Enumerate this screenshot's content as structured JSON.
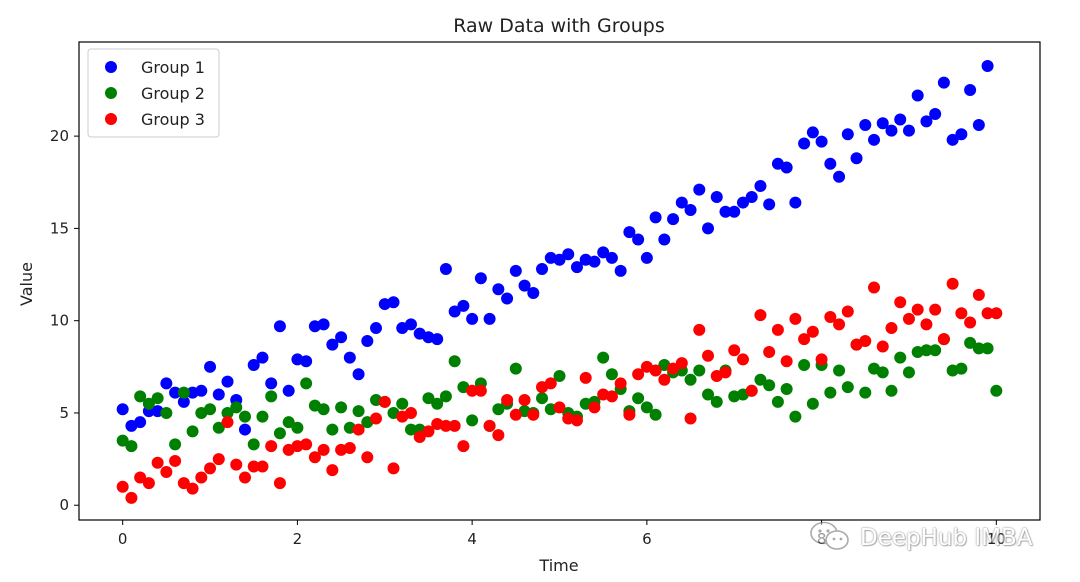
{
  "chart_data": {
    "type": "scatter",
    "title": "Raw Data with Groups",
    "xlabel": "Time",
    "ylabel": "Value",
    "xlim": [
      -0.5,
      10.5
    ],
    "ylim": [
      -0.8,
      25.1
    ],
    "xticks": [
      0,
      2,
      4,
      6,
      8,
      10
    ],
    "yticks": [
      0,
      5,
      10,
      15,
      20
    ],
    "grid": false,
    "legend": "top-left",
    "x": [
      0.0,
      0.1,
      0.2,
      0.3,
      0.4,
      0.5,
      0.6,
      0.7,
      0.8,
      0.9,
      1.0,
      1.1,
      1.2,
      1.3,
      1.4,
      1.5,
      1.6,
      1.7,
      1.8,
      1.9,
      2.0,
      2.1,
      2.2,
      2.3,
      2.4,
      2.5,
      2.6,
      2.7,
      2.8,
      2.9,
      3.0,
      3.1,
      3.2,
      3.3,
      3.4,
      3.5,
      3.6,
      3.7,
      3.8,
      3.9,
      4.0,
      4.1,
      4.2,
      4.3,
      4.4,
      4.5,
      4.6,
      4.7,
      4.8,
      4.9,
      5.0,
      5.1,
      5.2,
      5.3,
      5.4,
      5.5,
      5.6,
      5.7,
      5.8,
      5.9,
      6.0,
      6.1,
      6.2,
      6.3,
      6.4,
      6.5,
      6.6,
      6.7,
      6.8,
      6.9,
      7.0,
      7.1,
      7.2,
      7.3,
      7.4,
      7.5,
      7.6,
      7.7,
      7.8,
      7.9,
      8.0,
      8.1,
      8.2,
      8.3,
      8.4,
      8.5,
      8.6,
      8.7,
      8.8,
      8.9,
      9.0,
      9.1,
      9.2,
      9.3,
      9.4,
      9.5,
      9.6,
      9.7,
      9.8,
      9.9,
      10.0
    ],
    "series": [
      {
        "name": "Group 1",
        "color": "#0000ff",
        "values": [
          5.2,
          4.3,
          4.5,
          5.1,
          5.1,
          6.6,
          6.1,
          5.6,
          6.1,
          6.2,
          7.5,
          6.0,
          6.7,
          5.7,
          4.1,
          7.6,
          8.0,
          6.6,
          9.7,
          6.2,
          7.9,
          7.8,
          9.7,
          9.8,
          8.7,
          9.1,
          8.0,
          7.1,
          8.9,
          9.6,
          10.9,
          11.0,
          9.6,
          9.8,
          9.3,
          9.1,
          9.0,
          12.8,
          10.5,
          10.8,
          10.1,
          12.3,
          10.1,
          11.7,
          11.2,
          12.7,
          11.9,
          11.5,
          12.8,
          13.4,
          13.3,
          13.6,
          12.9,
          13.3,
          13.2,
          13.7,
          13.4,
          12.7,
          14.8,
          14.4,
          13.4,
          15.6,
          14.4,
          15.5,
          16.4,
          16.0,
          17.1,
          15.0,
          16.7,
          15.9,
          15.9,
          16.4,
          16.7,
          17.3,
          16.3,
          18.5,
          18.3,
          16.4,
          19.6,
          20.2,
          19.7,
          18.5,
          17.8,
          20.1,
          18.8,
          20.6,
          19.8,
          20.7,
          20.3,
          20.9,
          20.3,
          22.2,
          20.8,
          21.2,
          22.9,
          19.8,
          20.1,
          22.5,
          20.6,
          23.8
        ]
      },
      {
        "name": "Group 2",
        "color": "#008000",
        "values": [
          3.5,
          3.2,
          5.9,
          5.5,
          5.8,
          5.0,
          3.3,
          6.1,
          4.0,
          5.0,
          5.2,
          4.2,
          5.0,
          5.3,
          4.8,
          3.3,
          4.8,
          5.9,
          3.9,
          4.5,
          4.2,
          6.6,
          5.4,
          5.2,
          4.1,
          5.3,
          4.2,
          5.1,
          4.5,
          5.7,
          5.6,
          5.0,
          5.5,
          4.1,
          4.1,
          5.8,
          5.5,
          5.9,
          7.8,
          6.4,
          4.6,
          6.6,
          4.3,
          5.2,
          5.5,
          7.4,
          5.1,
          5.0,
          5.8,
          5.2,
          7.0,
          5.0,
          4.8,
          5.5,
          5.6,
          8.0,
          7.1,
          6.3,
          5.1,
          5.8,
          5.3,
          4.9,
          7.6,
          7.2,
          7.3,
          6.8,
          7.3,
          6.0,
          5.6,
          7.3,
          5.9,
          6.0,
          6.2,
          6.8,
          6.5,
          5.6,
          6.3,
          4.8,
          7.6,
          5.5,
          7.6,
          6.1,
          7.3,
          6.4,
          8.7,
          6.1,
          7.4,
          7.2,
          6.2,
          8.0,
          7.2,
          8.3,
          8.4,
          8.4,
          9.0,
          7.3,
          7.4,
          8.8,
          8.5,
          8.5,
          6.2
        ]
      },
      {
        "name": "Group 3",
        "color": "#ff0000",
        "values": [
          1.0,
          0.4,
          1.5,
          1.2,
          2.3,
          1.8,
          2.4,
          1.2,
          0.9,
          1.5,
          2.0,
          2.5,
          4.5,
          2.2,
          1.5,
          2.1,
          2.1,
          3.2,
          1.2,
          3.0,
          3.2,
          3.3,
          2.6,
          3.0,
          1.9,
          3.0,
          3.1,
          4.1,
          2.6,
          4.7,
          5.6,
          2.0,
          4.8,
          5.0,
          3.7,
          4.0,
          4.4,
          4.3,
          4.3,
          3.2,
          6.2,
          6.2,
          4.3,
          3.8,
          5.7,
          4.9,
          5.7,
          4.9,
          6.4,
          6.6,
          5.3,
          4.7,
          4.6,
          6.9,
          5.3,
          6.0,
          5.9,
          6.6,
          4.9,
          7.1,
          7.5,
          7.3,
          6.8,
          7.4,
          7.7,
          4.7,
          9.5,
          8.1,
          7.0,
          7.2,
          8.4,
          7.9,
          6.2,
          10.3,
          8.3,
          9.5,
          7.8,
          10.1,
          9.0,
          9.4,
          7.9,
          10.2,
          9.8,
          10.5,
          8.7,
          8.9,
          11.8,
          8.6,
          9.6,
          11.0,
          10.1,
          10.6,
          9.8,
          10.6,
          9.0,
          12.0,
          10.4,
          9.9,
          11.4,
          10.4,
          10.4
        ]
      }
    ]
  },
  "watermark": {
    "text": "DeepHub IMBA",
    "icon": "wechat-icon"
  }
}
